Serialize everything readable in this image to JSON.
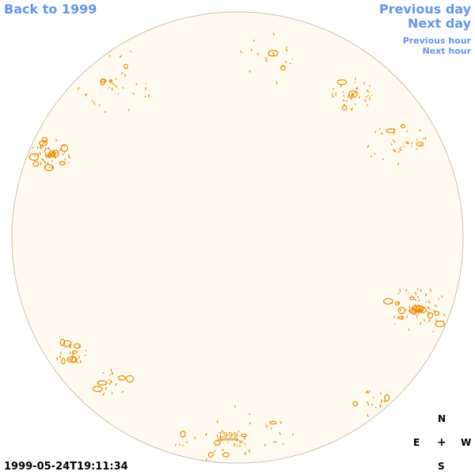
{
  "nav": {
    "back_label": "Back to 1999",
    "prev_day_label": "Previous day",
    "next_day_label": "Next day",
    "prev_hour_label": "Previous hour",
    "next_hour_label": "Next hour"
  },
  "map": {
    "year_marker": "1999",
    "timestamp": "1999-05-24T19:11:34"
  },
  "compass": {
    "n": "N",
    "e": "E",
    "center": "+",
    "w": "W",
    "s": "S"
  },
  "colors": {
    "link": "#6495ed",
    "disk_fill": "#fffaf0",
    "disk_edge": "#c8beb0",
    "feature": "#e88a00"
  }
}
